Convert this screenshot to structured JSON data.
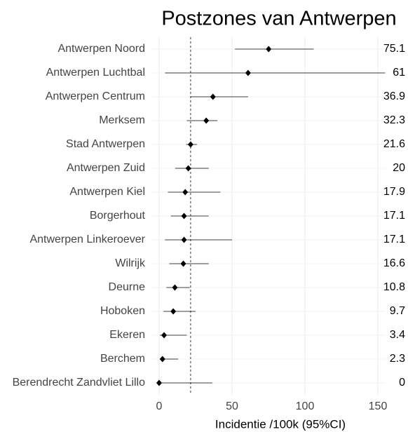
{
  "chart_data": {
    "type": "forest",
    "title": "Postzones van Antwerpen",
    "x_label": "Incidentie /100k (95%CI)",
    "categories": [
      "Antwerpen Noord",
      "Antwerpen Luchtbal",
      "Antwerpen Centrum",
      "Merksem",
      "Stad Antwerpen",
      "Antwerpen Zuid",
      "Antwerpen Kiel",
      "Borgerhout",
      "Antwerpen Linkeroever",
      "Wilrijk",
      "Deurne",
      "Hoboken",
      "Ekeren",
      "Berchem",
      "Berendrecht Zandvliet Lillo"
    ],
    "values": [
      75.1,
      61,
      36.9,
      32.3,
      21.6,
      20,
      17.9,
      17.1,
      17.1,
      16.6,
      10.8,
      9.7,
      3.4,
      2.3,
      0
    ],
    "lower": [
      52,
      4,
      21.5,
      19,
      18.5,
      11,
      6,
      8,
      4,
      7,
      5,
      3,
      0.5,
      0.5,
      0
    ],
    "upper": [
      106,
      155,
      61,
      40,
      26,
      34,
      42,
      34,
      50,
      34,
      21,
      25,
      19,
      13,
      36.5
    ],
    "reference": 21.6,
    "color": "#000000",
    "xlim": [
      -6,
      155
    ],
    "xticks": [
      0,
      50,
      100,
      150
    ],
    "grid": true
  }
}
